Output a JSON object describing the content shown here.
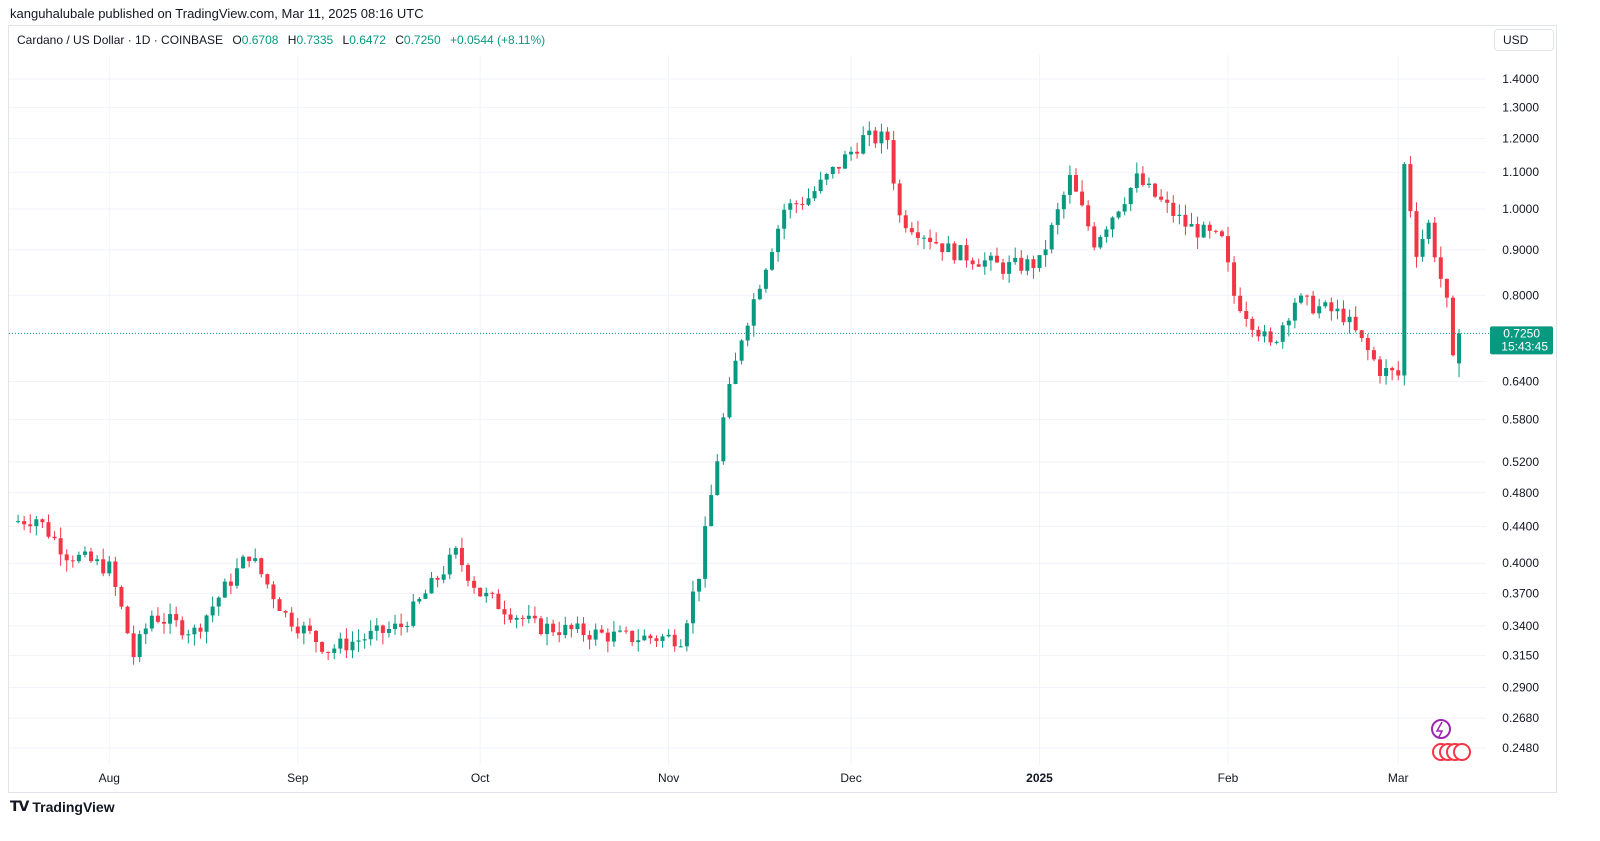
{
  "publisher": "kanguhalubale published on TradingView.com, Mar 11, 2025 08:16 UTC",
  "legend": {
    "symbol": "Cardano / US Dollar · 1D · COINBASE",
    "open_label": "O",
    "open": "0.6708",
    "high_label": "H",
    "high": "0.7335",
    "low_label": "L",
    "low": "0.6472",
    "close_label": "C",
    "close": "0.7250",
    "change": "+0.0544 (+8.11%)"
  },
  "currency_button": "USD",
  "brand": "TradingView",
  "colors": {
    "up": "#089981",
    "down": "#f23645",
    "last_price_line": "#089981",
    "grid": "#f0f3fa"
  },
  "chart_data": {
    "type": "candlestick",
    "title": "Cardano / US Dollar · 1D · COINBASE",
    "y_scale": "log",
    "ylim": [
      0.24,
      1.45
    ],
    "y_ticks": [
      "1.4000",
      "1.3000",
      "1.2000",
      "1.1000",
      "1.0000",
      "0.9000",
      "0.8000",
      "0.6400",
      "0.5800",
      "0.5200",
      "0.4800",
      "0.4400",
      "0.4000",
      "0.3700",
      "0.3400",
      "0.3150",
      "0.2900",
      "0.2680",
      "0.2480"
    ],
    "x_ticks": [
      "Aug",
      "Sep",
      "Oct",
      "Nov",
      "Dec",
      "2025",
      "Feb",
      "Mar"
    ],
    "last_price": {
      "value": "0.7250",
      "countdown": "15:43:45"
    },
    "ohlc_samples": [
      {
        "date": "2024-07-16",
        "close": 0.445
      },
      {
        "date": "2024-07-20",
        "close": 0.45
      },
      {
        "date": "2024-07-25",
        "close": 0.41
      },
      {
        "date": "2024-08-01",
        "close": 0.395
      },
      {
        "date": "2024-08-03",
        "close": 0.355
      },
      {
        "date": "2024-08-05",
        "close": 0.315
      },
      {
        "date": "2024-08-08",
        "close": 0.35
      },
      {
        "date": "2024-08-15",
        "close": 0.335
      },
      {
        "date": "2024-08-24",
        "close": 0.41
      },
      {
        "date": "2024-08-30",
        "close": 0.35
      },
      {
        "date": "2024-09-06",
        "close": 0.32
      },
      {
        "date": "2024-09-18",
        "close": 0.34
      },
      {
        "date": "2024-09-27",
        "close": 0.41
      },
      {
        "date": "2024-10-01",
        "close": 0.37
      },
      {
        "date": "2024-10-10",
        "close": 0.34
      },
      {
        "date": "2024-10-25",
        "close": 0.33
      },
      {
        "date": "2024-11-03",
        "close": 0.33
      },
      {
        "date": "2024-11-06",
        "close": 0.39
      },
      {
        "date": "2024-11-10",
        "close": 0.58
      },
      {
        "date": "2024-11-13",
        "close": 0.72
      },
      {
        "date": "2024-11-20",
        "close": 1.0
      },
      {
        "date": "2024-11-24",
        "close": 1.03
      },
      {
        "date": "2024-12-03",
        "close": 1.2
      },
      {
        "date": "2024-12-07",
        "close": 1.2
      },
      {
        "date": "2024-12-09",
        "close": 0.98
      },
      {
        "date": "2024-12-17",
        "close": 0.9
      },
      {
        "date": "2024-12-26",
        "close": 0.86
      },
      {
        "date": "2025-01-01",
        "close": 0.87
      },
      {
        "date": "2025-01-06",
        "close": 1.08
      },
      {
        "date": "2025-01-10",
        "close": 0.92
      },
      {
        "date": "2025-01-17",
        "close": 1.08
      },
      {
        "date": "2025-01-25",
        "close": 0.96
      },
      {
        "date": "2025-01-31",
        "close": 0.92
      },
      {
        "date": "2025-02-02",
        "close": 0.8
      },
      {
        "date": "2025-02-08",
        "close": 0.7
      },
      {
        "date": "2025-02-12",
        "close": 0.79
      },
      {
        "date": "2025-02-20",
        "close": 0.76
      },
      {
        "date": "2025-02-26",
        "close": 0.66
      },
      {
        "date": "2025-03-01",
        "close": 0.65
      },
      {
        "date": "2025-03-02",
        "close": 1.12
      },
      {
        "date": "2025-03-04",
        "close": 0.9
      },
      {
        "date": "2025-03-06",
        "close": 0.96
      },
      {
        "date": "2025-03-09",
        "close": 0.78
      },
      {
        "date": "2025-03-10",
        "close": 0.6708
      },
      {
        "date": "2025-03-11",
        "close": 0.725
      }
    ]
  }
}
